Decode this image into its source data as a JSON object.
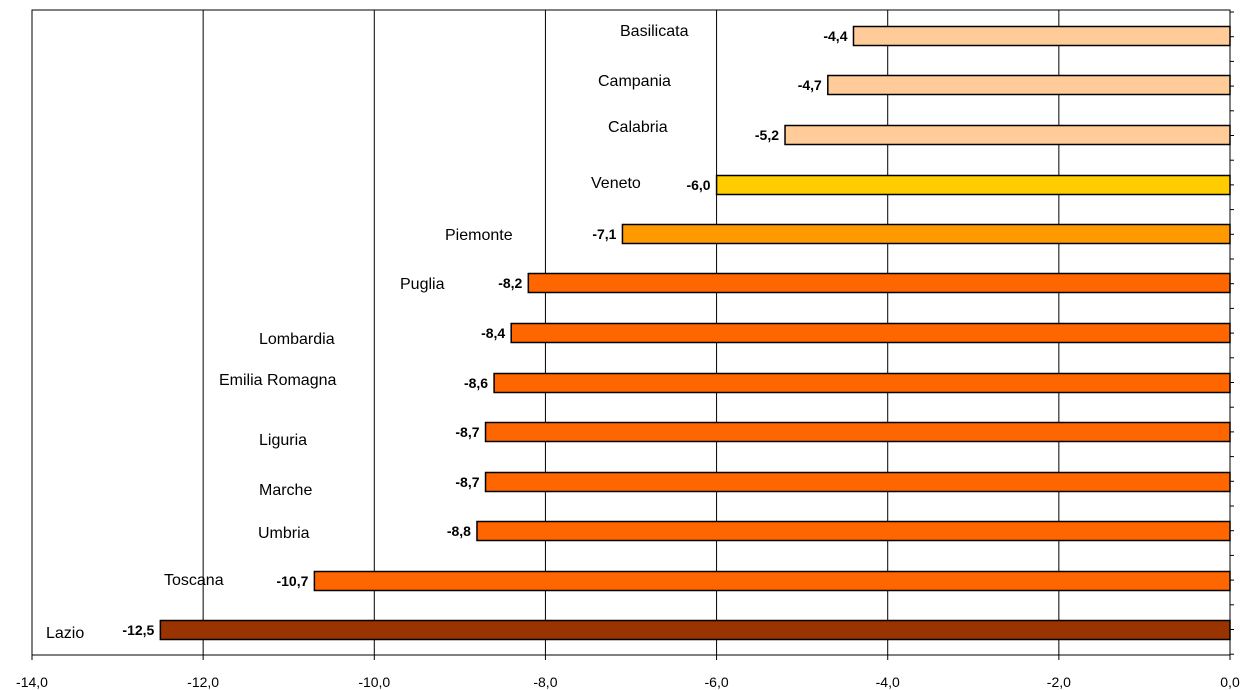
{
  "chart_data": {
    "type": "bar",
    "orientation": "horizontal",
    "categories": [
      "Basilicata",
      "Campania",
      "Calabria",
      "Veneto",
      "Piemonte",
      "Puglia",
      "Lombardia",
      "Emilia Romagna",
      "Liguria",
      "Marche",
      "Umbria",
      "Toscana",
      "Lazio"
    ],
    "values": [
      -4.4,
      -4.7,
      -5.2,
      -6.0,
      -7.1,
      -8.2,
      -8.4,
      -8.6,
      -8.7,
      -8.7,
      -8.8,
      -10.7,
      -12.5
    ],
    "value_labels": [
      "-4,4",
      "-4,7",
      "-5,2",
      "-6,0",
      "-7,1",
      "-8,2",
      "-8,4",
      "-8,6",
      "-8,7",
      "-8,7",
      "-8,8",
      "-10,7",
      "-12,5"
    ],
    "bar_colors": [
      "#ffcc99",
      "#ffcc99",
      "#ffcc99",
      "#ffcc00",
      "#ff9900",
      "#ff6600",
      "#ff6600",
      "#ff6600",
      "#ff6600",
      "#ff6600",
      "#ff6600",
      "#ff6600",
      "#993300"
    ],
    "x_ticks": [
      -14,
      -12,
      -10,
      -8,
      -6,
      -4,
      -2,
      0
    ],
    "x_tick_labels": [
      "-14,0",
      "-12,0",
      "-10,0",
      "-8,0",
      "-6,0",
      "-4,0",
      "-2,0",
      "0,0"
    ],
    "xlim": [
      -14,
      0
    ],
    "title": "",
    "xlabel": "",
    "ylabel": "",
    "grid": "vertical",
    "legend": "none"
  }
}
